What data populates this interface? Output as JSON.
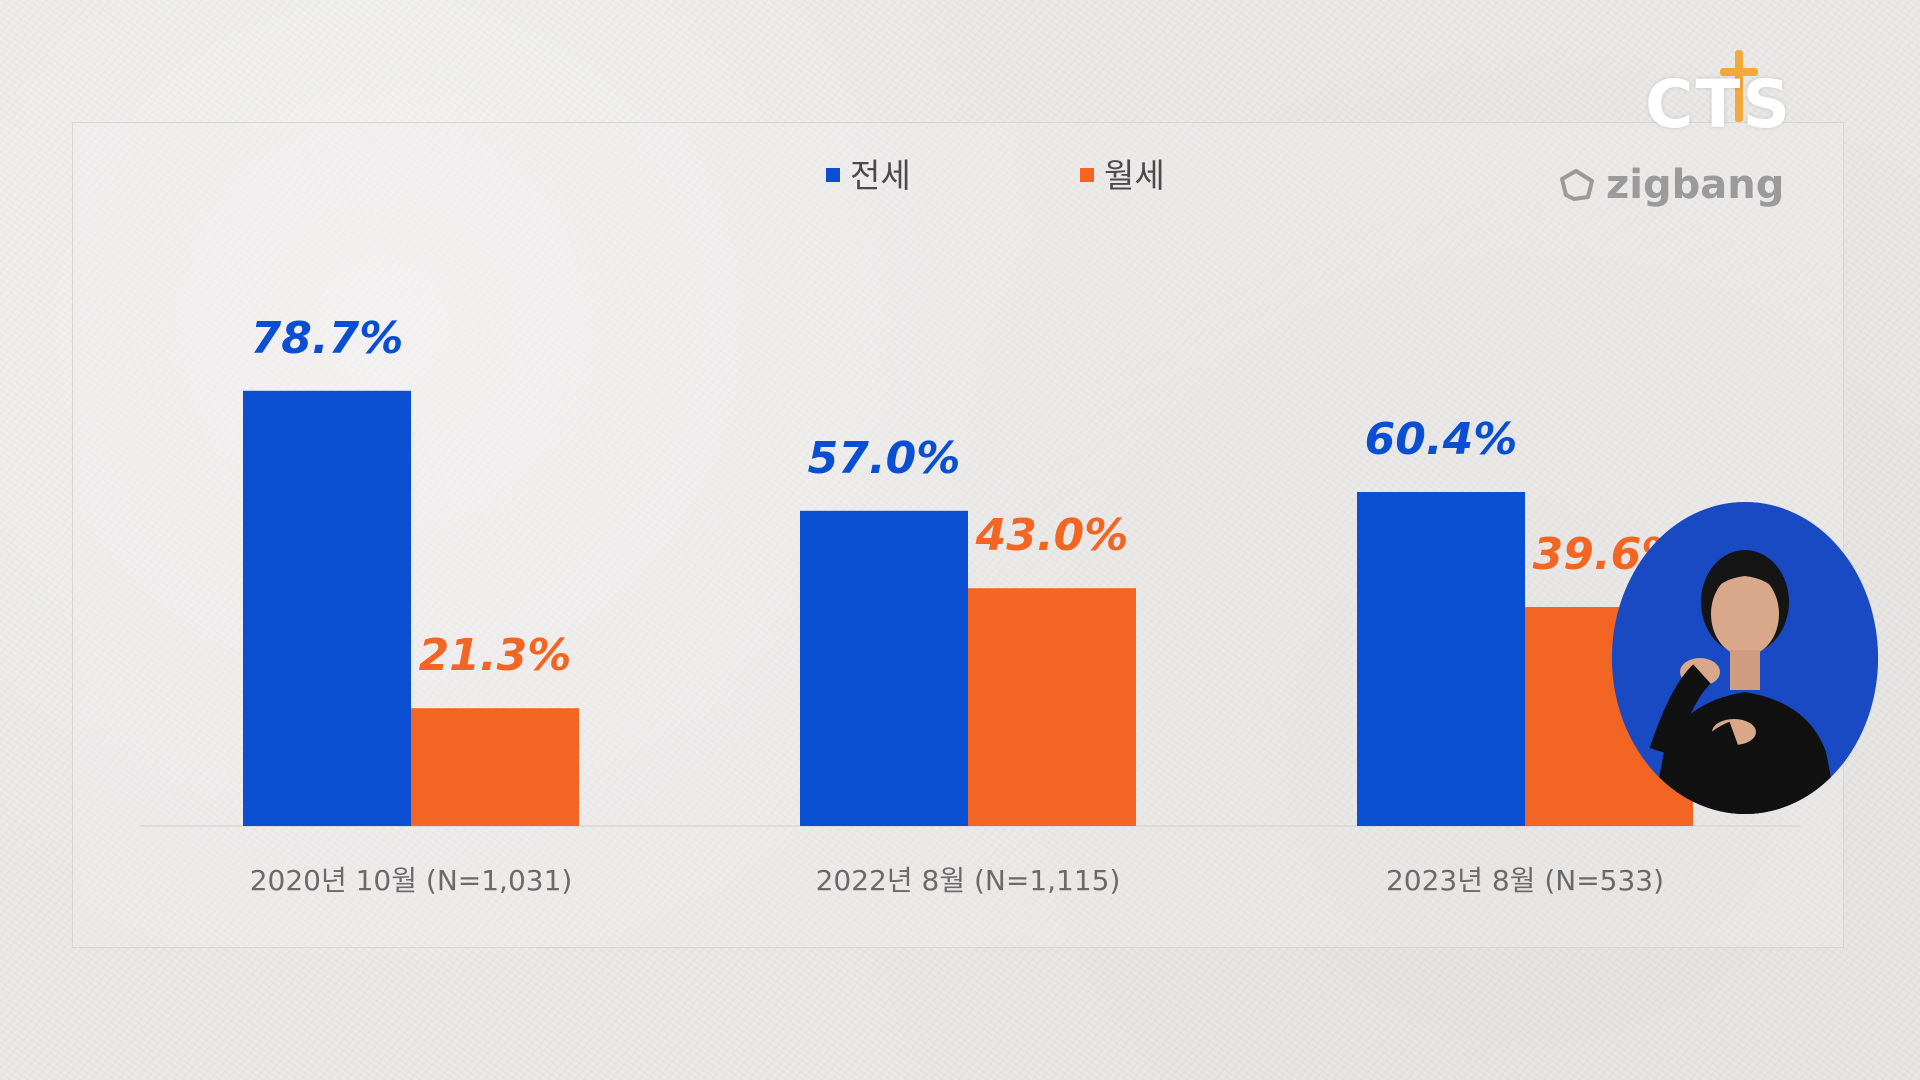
{
  "brand": {
    "cts_logo": "CTS",
    "source_logo": "zigbang"
  },
  "legend": [
    {
      "label": "전세",
      "color": "#0a4fd1"
    },
    {
      "label": "월세",
      "color": "#f26522"
    }
  ],
  "chart_data": {
    "type": "bar",
    "categories": [
      "2020년 10월 (N=1,031)",
      "2022년 8월 (N=1,115)",
      "2023년 8월 (N=533)"
    ],
    "series": [
      {
        "name": "전세",
        "values": [
          78.7,
          57.0,
          60.4
        ],
        "labels": [
          "78.7%",
          "57.0%",
          "60.4%"
        ],
        "color": "#0a4fd1"
      },
      {
        "name": "월세",
        "values": [
          21.3,
          43.0,
          39.6
        ],
        "labels": [
          "21.3%",
          "43.0%",
          "39.6%"
        ],
        "color": "#f26522"
      }
    ],
    "grid": false,
    "legend_position": "top-center"
  },
  "overlay": {
    "sign_language_interpreter": true
  }
}
